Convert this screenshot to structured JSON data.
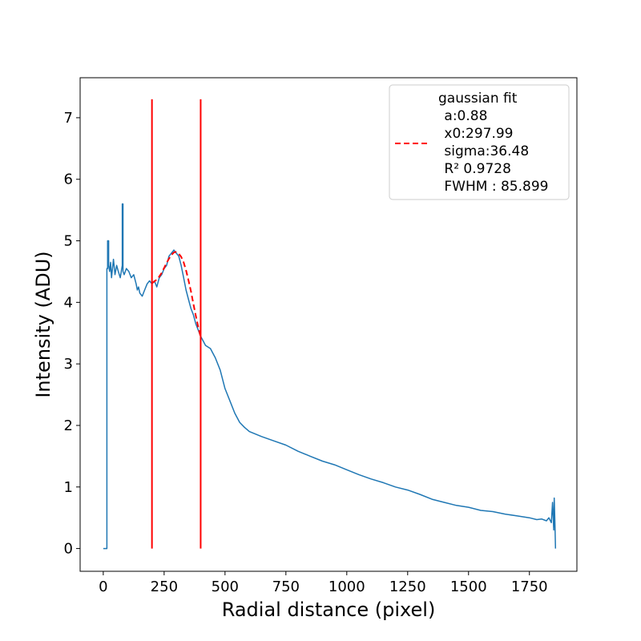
{
  "chart_data": {
    "type": "line",
    "xlabel": "Radial distance (pixel)",
    "ylabel": "Intensity (ADU)",
    "xlim": [
      -95,
      1945
    ],
    "ylim": [
      -0.37,
      7.65
    ],
    "x_ticks": [
      0,
      250,
      500,
      750,
      1000,
      1250,
      1500,
      1750
    ],
    "y_ticks": [
      0,
      1,
      2,
      3,
      4,
      5,
      6,
      7
    ],
    "grid": false,
    "legend_placement": "top-right",
    "series": [
      {
        "color": "#1f77b4",
        "style": "solid",
        "x": [
          0,
          15,
          15,
          18,
          18,
          22,
          22,
          26,
          30,
          34,
          38,
          42,
          48,
          55,
          62,
          70,
          78,
          78,
          81,
          81,
          86,
          95,
          105,
          115,
          125,
          135,
          140,
          145,
          150,
          160,
          170,
          180,
          190,
          200,
          210,
          220,
          230,
          240,
          250,
          260,
          270,
          280,
          290,
          300,
          310,
          320,
          330,
          340,
          350,
          360,
          370,
          380,
          390,
          400,
          420,
          440,
          460,
          480,
          500,
          520,
          540,
          560,
          580,
          600,
          650,
          700,
          750,
          800,
          850,
          900,
          950,
          1000,
          1050,
          1100,
          1150,
          1200,
          1250,
          1300,
          1350,
          1400,
          1450,
          1500,
          1550,
          1600,
          1650,
          1700,
          1750,
          1780,
          1800,
          1820,
          1830,
          1840,
          1845,
          1850,
          1852,
          1855,
          1857
        ],
        "y": [
          0,
          0,
          4.55,
          4.55,
          5.0,
          5.0,
          4.6,
          4.5,
          4.65,
          4.4,
          4.55,
          4.7,
          4.45,
          4.6,
          4.5,
          4.4,
          4.6,
          5.6,
          5.6,
          4.5,
          4.45,
          4.55,
          4.5,
          4.4,
          4.45,
          4.3,
          4.2,
          4.25,
          4.15,
          4.1,
          4.2,
          4.3,
          4.35,
          4.3,
          4.35,
          4.25,
          4.4,
          4.45,
          4.55,
          4.6,
          4.75,
          4.8,
          4.85,
          4.8,
          4.75,
          4.6,
          4.4,
          4.2,
          4.05,
          3.9,
          3.8,
          3.65,
          3.55,
          3.45,
          3.3,
          3.25,
          3.1,
          2.9,
          2.6,
          2.4,
          2.2,
          2.05,
          1.97,
          1.9,
          1.82,
          1.75,
          1.68,
          1.58,
          1.5,
          1.42,
          1.36,
          1.28,
          1.2,
          1.13,
          1.07,
          1.0,
          0.95,
          0.88,
          0.8,
          0.75,
          0.7,
          0.67,
          0.62,
          0.6,
          0.56,
          0.53,
          0.5,
          0.47,
          0.48,
          0.45,
          0.5,
          0.42,
          0.75,
          0.3,
          0.82,
          0.4,
          0.0
        ]
      },
      {
        "color": "#ff0000",
        "style": "dashed",
        "x": [
          200,
          210,
          220,
          230,
          240,
          250,
          260,
          270,
          280,
          290,
          298,
          310,
          320,
          330,
          340,
          350,
          360,
          370,
          380,
          390,
          400
        ],
        "y": [
          4.31,
          4.34,
          4.37,
          4.42,
          4.48,
          4.56,
          4.64,
          4.71,
          4.77,
          4.81,
          4.82,
          4.79,
          4.74,
          4.65,
          4.52,
          4.36,
          4.18,
          3.98,
          3.78,
          3.6,
          3.44
        ]
      }
    ],
    "vlines": [
      {
        "x": 200,
        "y0": 0,
        "y1": 7.3,
        "color": "#ff0000"
      },
      {
        "x": 400,
        "y0": 0,
        "y1": 7.3,
        "color": "#ff0000"
      }
    ],
    "legend": {
      "title": "gaussian fit",
      "lines": [
        " a:0.88",
        " x0:297.99",
        " sigma:36.48",
        " R² 0.9728",
        " FWHM : 85.899"
      ]
    }
  }
}
